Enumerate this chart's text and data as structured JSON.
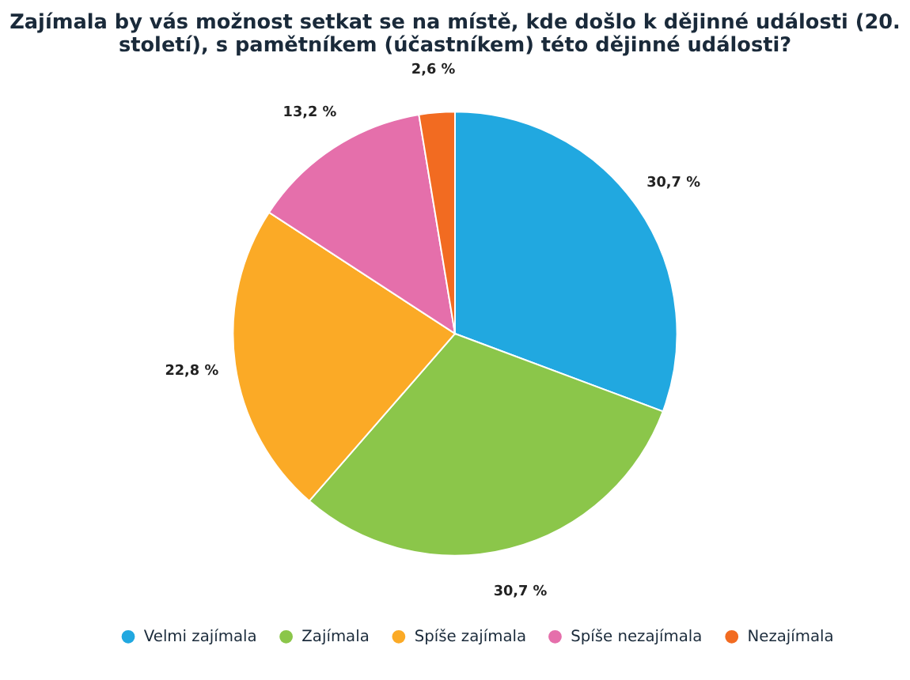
{
  "chart_data": {
    "type": "pie",
    "title": "Zajímala by vás možnost setkat se na místě, kde došlo k dějinné události (20. století), s pamětníkem (účastníkem) této dějinné události?",
    "categories": [
      "Velmi zajímala",
      "Zajímala",
      "Spíše zajímala",
      "Spíše nezajímala",
      "Nezajímala"
    ],
    "values": [
      30.7,
      30.7,
      22.8,
      13.2,
      2.6
    ],
    "value_labels": [
      "30,7 %",
      "30,7 %",
      "22,8 %",
      "13,2 %",
      "2,6 %"
    ],
    "colors": [
      "#21a8e0",
      "#8bc64a",
      "#fbaa26",
      "#e56fab",
      "#f26b21"
    ],
    "legend": "bottom"
  }
}
